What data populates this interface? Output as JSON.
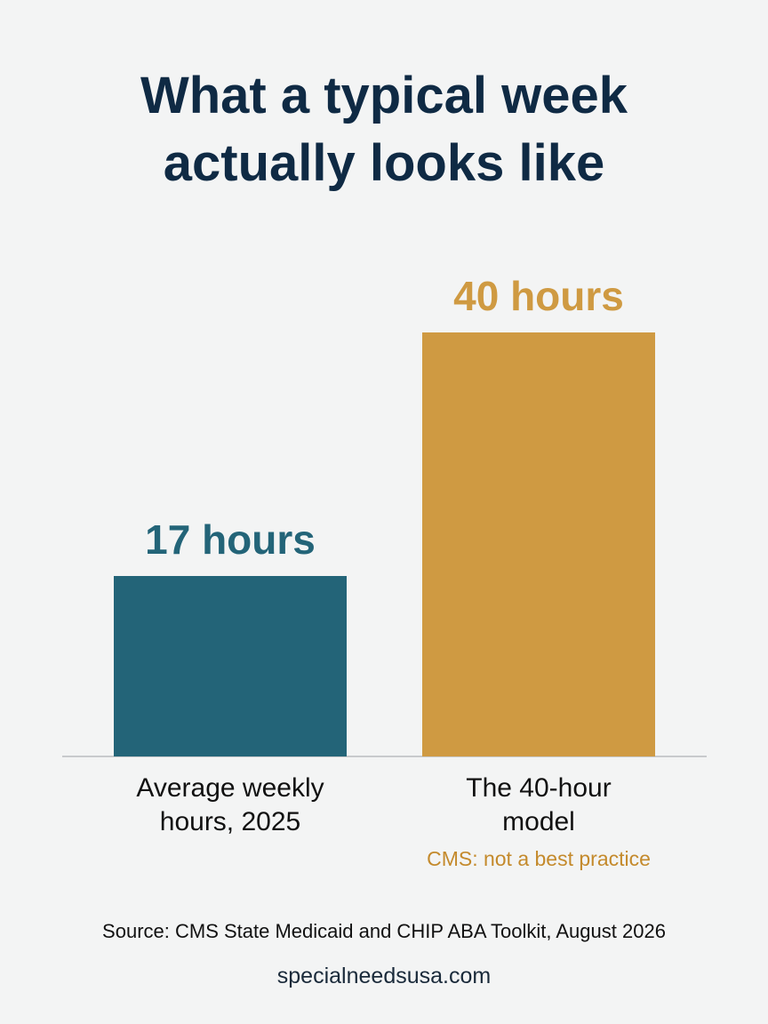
{
  "chart_data": {
    "type": "bar",
    "title": "What a typical week actually looks like",
    "categories": [
      "Average weekly hours, 2025",
      "The 40-hour model"
    ],
    "values": [
      17,
      40
    ],
    "value_labels": [
      "17 hours",
      "40 hours"
    ],
    "colors": [
      "#236478",
      "#cf9a42"
    ],
    "annotation": "CMS: not a best practice",
    "source": "Source: CMS State Medicaid and CHIP ABA Toolkit, August 2026",
    "website": "specialneedsusa.com"
  }
}
